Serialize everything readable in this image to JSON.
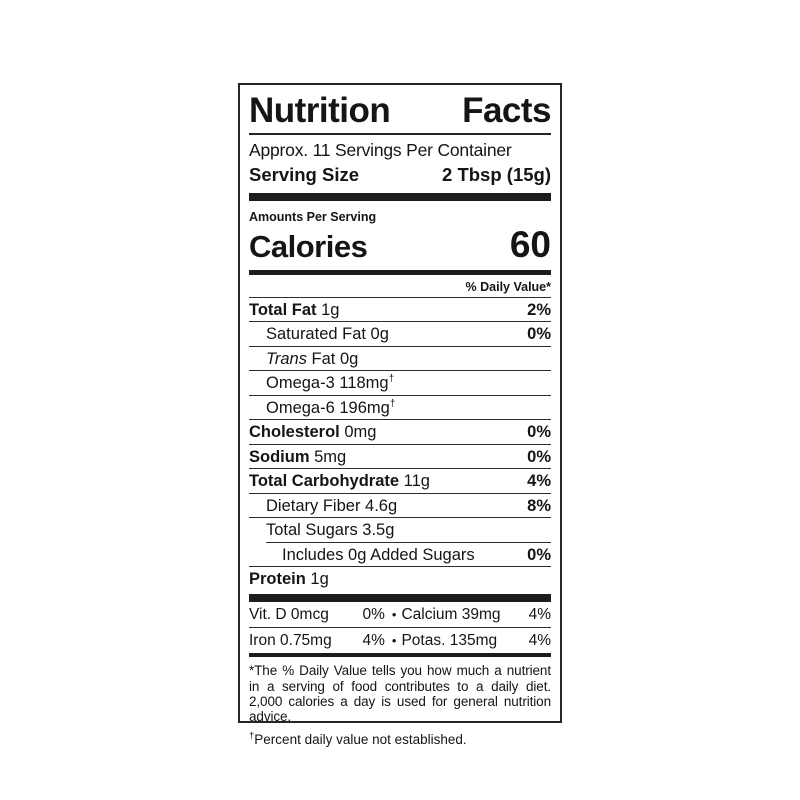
{
  "label": {
    "title_word1": "Nutrition",
    "title_word2": "Facts",
    "servings_per_container": "Approx. 11 Servings Per Container",
    "serving_size_label": "Serving Size",
    "serving_size_value": "2 Tbsp (15g)",
    "amounts_per_serving": "Amounts Per Serving",
    "calories_label": "Calories",
    "calories_value": "60",
    "daily_value_header": "% Daily Value*",
    "rows": [
      {
        "bold": "Total Fat",
        "rest": " 1g",
        "dv": "2%"
      },
      {
        "rest": "Saturated Fat 0g",
        "dv": "0%"
      },
      {
        "italic": "Trans",
        "rest": " Fat 0g"
      },
      {
        "rest": "Omega-3 118mg",
        "sup": "†"
      },
      {
        "rest": "Omega-6 196mg",
        "sup": "†"
      },
      {
        "bold": "Cholesterol",
        "rest": " 0mg",
        "dv": "0%"
      },
      {
        "bold": "Sodium",
        "rest": " 5mg",
        "dv": "0%"
      },
      {
        "bold": "Total Carbohydrate",
        "rest": " 11g",
        "dv": "4%"
      },
      {
        "rest": "Dietary Fiber 4.6g",
        "dv": "8%"
      },
      {
        "rest": "Total Sugars 3.5g"
      },
      {
        "rest": "Includes 0g Added Sugars",
        "dv": "0%"
      },
      {
        "bold": "Protein",
        "rest": " 1g"
      }
    ],
    "bullet": "•",
    "micronutrients": [
      {
        "left_name": "Vit. D 0mcg",
        "left_dv": "0%",
        "right_name": "Calcium 39mg",
        "right_dv": "4%"
      },
      {
        "left_name": "Iron 0.75mg",
        "left_dv": "4%",
        "right_name": "Potas. 135mg",
        "right_dv": "4%"
      }
    ],
    "footnote": "*The % Daily Value tells you how much a nutrient in a serving of food contributes to a daily diet. 2,000 calories a day is used for general nutrition advice.",
    "dagger_note_sup": "†",
    "dagger_note_text": "Percent daily value not established."
  },
  "colors": {
    "text": "#151515",
    "border": "#262626",
    "background": "#ffffff"
  }
}
